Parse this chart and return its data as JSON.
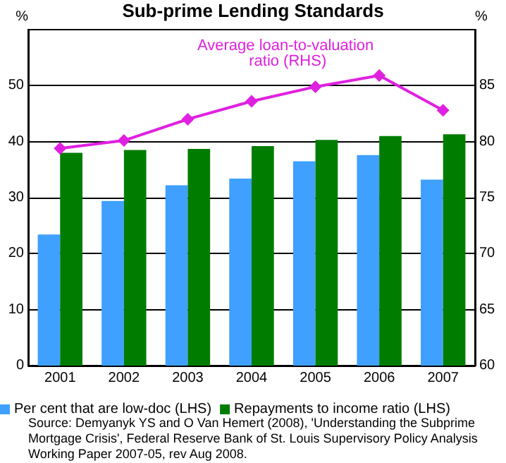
{
  "chart_data": {
    "type": "bar",
    "title": "Sub-prime Lending Standards",
    "ylabel": "%",
    "y2label": "%",
    "categories": [
      "2001",
      "2002",
      "2003",
      "2004",
      "2005",
      "2006",
      "2007"
    ],
    "series": [
      {
        "name": "Per cent that are low-doc (LHS)",
        "color": "#3fa0ff",
        "values": [
          23.4,
          29.4,
          32.2,
          33.4,
          36.5,
          37.6,
          33.2
        ]
      },
      {
        "name": "Repayments to income ratio (LHS)",
        "color": "#007d00",
        "values": [
          38.0,
          38.5,
          38.7,
          39.2,
          40.3,
          41.0,
          41.3
        ]
      },
      {
        "name": "Average loan-to-valuation ratio (RHS)",
        "type": "line",
        "axis": "y2",
        "color": "#e020e0",
        "marker": "diamond",
        "line_style": "solid",
        "values": [
          79.4,
          80.1,
          82.0,
          83.6,
          84.9,
          85.9,
          82.8
        ]
      }
    ],
    "ylim": [
      0,
      60
    ],
    "yticks": [
      0,
      10,
      20,
      30,
      40,
      50
    ],
    "y2lim": [
      60,
      90
    ],
    "y2ticks": [
      60,
      65,
      70,
      75,
      80,
      85
    ],
    "grid": "y",
    "legend": "bottom",
    "annotations": [
      "Source: Demyanyk YS and O Van Hemert (2008), 'Understanding the Subprime Mortgage Crisis', Federal Reserve Bank of St. Louis Supervisory Policy Analysis Working Paper 2007-05, rev Aug 2008."
    ]
  }
}
